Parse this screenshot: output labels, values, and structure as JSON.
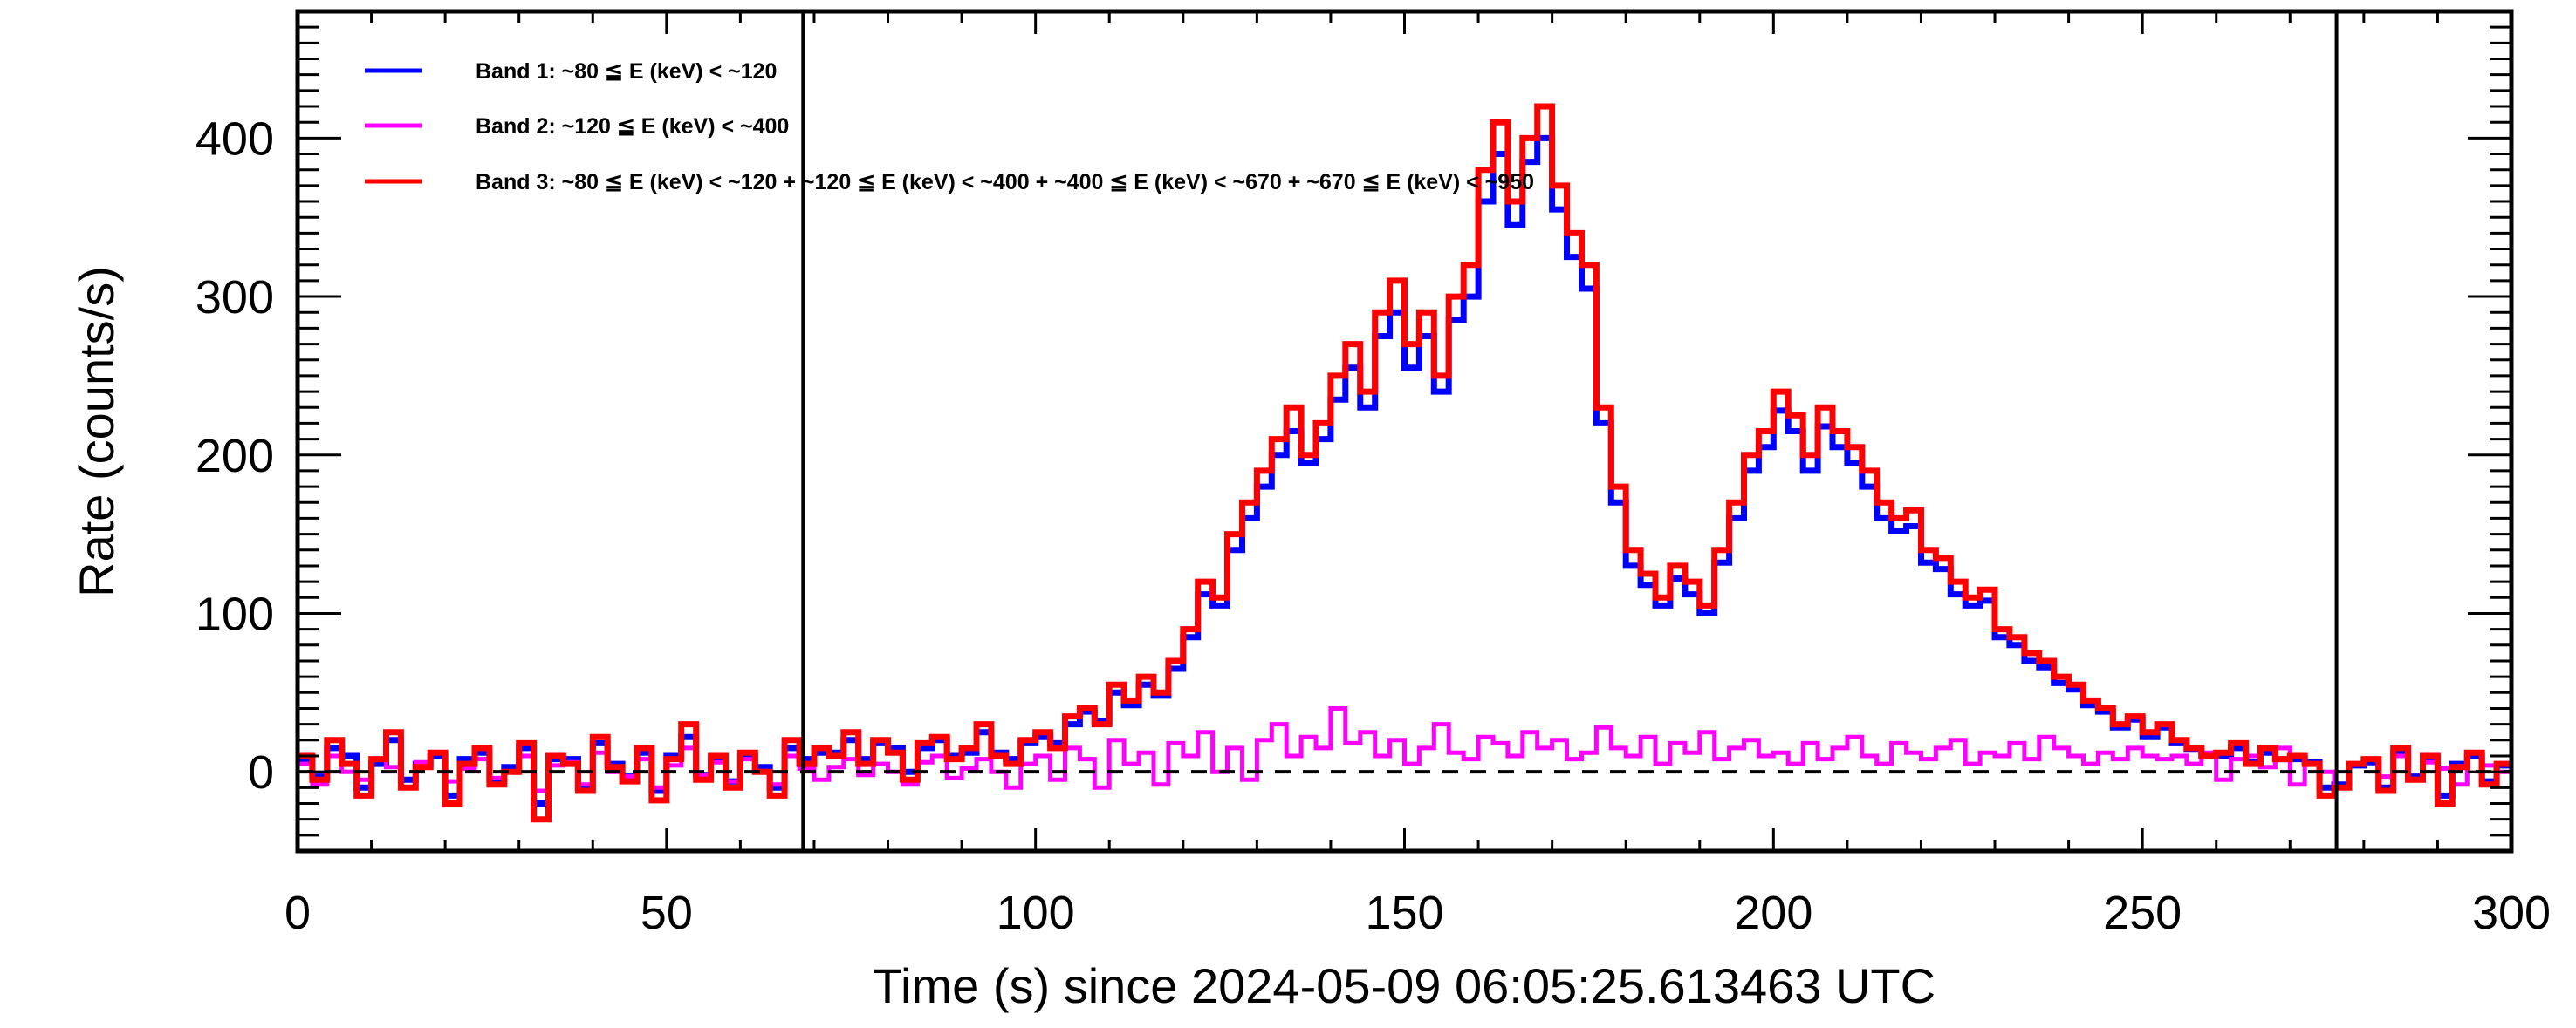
{
  "chart_data": {
    "type": "line",
    "title": "",
    "xlabel": "Time (s) since 2024-05-09 06:05:25.613463 UTC",
    "ylabel": "Rate (counts/s)",
    "xlim": [
      0,
      300
    ],
    "ylim": [
      -50,
      480
    ],
    "x_ticks": [
      0,
      50,
      100,
      150,
      200,
      250,
      300
    ],
    "x_tick_labels": [
      "0",
      "50",
      "100",
      "150",
      "200",
      "250",
      "300"
    ],
    "y_ticks": [
      0,
      100,
      200,
      300,
      400
    ],
    "y_tick_labels": [
      "0",
      "100",
      "200",
      "300",
      "400"
    ],
    "grid": false,
    "legend_position": "top-left",
    "reference_line_y": 0,
    "vertical_markers_x": [
      68.5,
      276.3
    ],
    "bin_width": 2,
    "x_start": 0,
    "series": [
      {
        "name": "Band 1: ~80 ≦ E (keV) < ~120",
        "color": "#0000ff",
        "values": [
          8,
          -3,
          15,
          10,
          -10,
          5,
          20,
          -5,
          5,
          10,
          -15,
          8,
          12,
          -5,
          3,
          15,
          -20,
          8,
          8,
          -10,
          18,
          5,
          -3,
          12,
          -12,
          10,
          22,
          -2,
          8,
          -6,
          10,
          3,
          -10,
          15,
          8,
          12,
          12,
          20,
          8,
          18,
          15,
          0,
          15,
          20,
          10,
          12,
          25,
          12,
          8,
          18,
          22,
          18,
          30,
          38,
          32,
          50,
          42,
          55,
          48,
          65,
          85,
          112,
          105,
          140,
          160,
          180,
          200,
          215,
          195,
          210,
          235,
          255,
          230,
          275,
          290,
          255,
          275,
          240,
          285,
          300,
          360,
          390,
          345,
          385,
          400,
          355,
          325,
          305,
          220,
          170,
          130,
          118,
          105,
          122,
          112,
          100,
          132,
          160,
          190,
          205,
          228,
          215,
          190,
          218,
          205,
          195,
          180,
          160,
          152,
          155,
          132,
          128,
          112,
          105,
          108,
          85,
          80,
          70,
          66,
          56,
          52,
          42,
          38,
          28,
          33,
          22,
          28,
          18,
          14,
          10,
          10,
          15,
          6,
          12,
          8,
          8,
          6,
          -10,
          -8,
          4,
          6,
          -10,
          12,
          -3,
          8,
          -15,
          5,
          10,
          -6,
          4
        ]
      },
      {
        "name": "Band 2: ~120 ≦ E (keV) < ~400",
        "color": "#ff00ff",
        "values": [
          5,
          -8,
          10,
          0,
          -5,
          8,
          3,
          -10,
          6,
          12,
          -6,
          2,
          8,
          -4,
          0,
          10,
          -12,
          4,
          6,
          -8,
          12,
          0,
          -3,
          8,
          -10,
          4,
          15,
          -2,
          6,
          -6,
          8,
          0,
          -8,
          10,
          2,
          -5,
          3,
          8,
          -2,
          5,
          0,
          -8,
          6,
          10,
          -4,
          2,
          8,
          0,
          -10,
          5,
          10,
          -5,
          15,
          8,
          -10,
          20,
          5,
          12,
          -8,
          18,
          10,
          25,
          0,
          15,
          -5,
          20,
          30,
          10,
          22,
          15,
          40,
          18,
          25,
          10,
          20,
          5,
          15,
          30,
          12,
          8,
          22,
          18,
          10,
          25,
          15,
          20,
          8,
          12,
          28,
          15,
          10,
          22,
          5,
          18,
          12,
          25,
          8,
          15,
          20,
          10,
          12,
          5,
          18,
          8,
          15,
          22,
          10,
          5,
          18,
          12,
          8,
          15,
          20,
          5,
          12,
          10,
          18,
          8,
          22,
          15,
          10,
          5,
          12,
          8,
          15,
          10,
          8,
          10,
          5,
          12,
          -5,
          8,
          10,
          3,
          15,
          -8,
          5,
          0,
          -10,
          5,
          8,
          -3,
          10,
          -5,
          6,
          2,
          -8,
          12,
          4,
          0
        ]
      },
      {
        "name": "Band 3: ~80 ≦ E (keV) < ~120 + ~120 ≦ E (keV) < ~400 + ~400 ≦ E (keV) < ~670 + ~670 ≦ E (keV) < ~950",
        "color": "#ff0000",
        "values": [
          10,
          -5,
          20,
          5,
          -15,
          8,
          25,
          -10,
          3,
          12,
          -20,
          5,
          15,
          -8,
          0,
          18,
          -30,
          10,
          5,
          -12,
          22,
          3,
          -6,
          15,
          -18,
          8,
          30,
          -5,
          10,
          -10,
          12,
          0,
          -15,
          20,
          5,
          15,
          10,
          25,
          5,
          20,
          12,
          -5,
          18,
          22,
          8,
          15,
          30,
          10,
          5,
          20,
          25,
          15,
          35,
          40,
          30,
          55,
          45,
          60,
          50,
          70,
          90,
          120,
          110,
          150,
          170,
          190,
          210,
          230,
          200,
          220,
          250,
          270,
          240,
          290,
          310,
          270,
          290,
          250,
          300,
          320,
          380,
          410,
          360,
          400,
          420,
          370,
          340,
          320,
          230,
          180,
          140,
          125,
          110,
          130,
          120,
          105,
          140,
          170,
          200,
          215,
          240,
          225,
          200,
          230,
          215,
          205,
          190,
          170,
          160,
          165,
          140,
          135,
          120,
          110,
          115,
          90,
          85,
          75,
          70,
          60,
          55,
          45,
          40,
          30,
          35,
          25,
          30,
          20,
          15,
          10,
          12,
          18,
          5,
          15,
          8,
          10,
          5,
          -15,
          -10,
          5,
          8,
          -12,
          15,
          -5,
          10,
          -20,
          3,
          12,
          -8,
          5
        ]
      }
    ]
  }
}
